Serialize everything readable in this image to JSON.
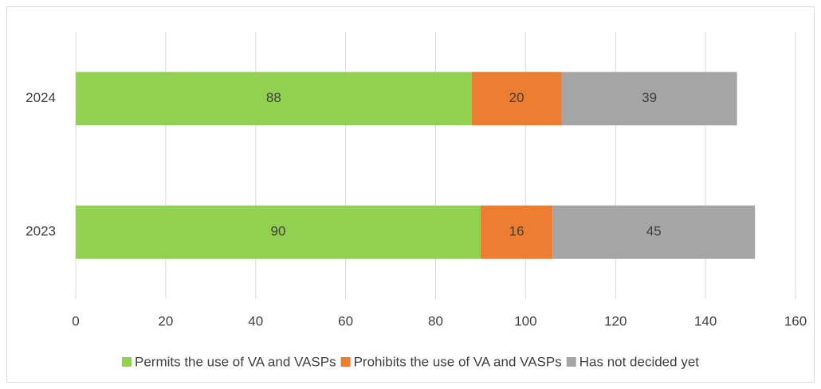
{
  "chart_data": {
    "type": "bar",
    "orientation": "horizontal",
    "stacked": true,
    "categories": [
      "2023",
      "2024"
    ],
    "series": [
      {
        "name": "Permits the use of VA and VASPs",
        "color": "#92d050",
        "values": [
          90,
          88
        ]
      },
      {
        "name": "Prohibits the use of VA and VASPs",
        "color": "#ed7d31",
        "values": [
          16,
          20
        ]
      },
      {
        "name": "Has not decided yet",
        "color": "#a5a5a5",
        "values": [
          45,
          39
        ]
      }
    ],
    "xlim": [
      0,
      160
    ],
    "xticks": [
      0,
      20,
      40,
      60,
      80,
      100,
      120,
      140,
      160
    ],
    "grid": true,
    "legend": "bottom"
  }
}
